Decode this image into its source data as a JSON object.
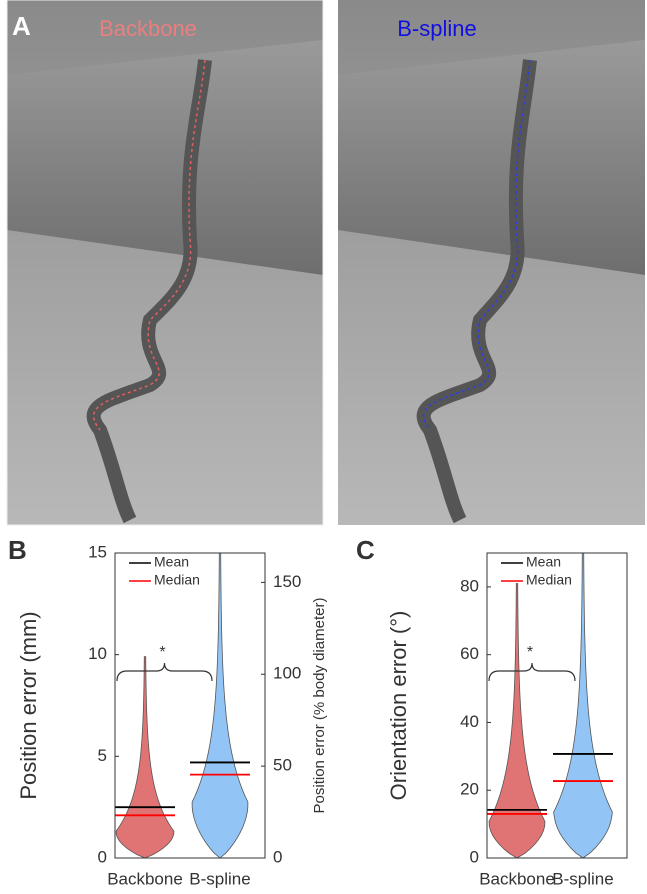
{
  "panel_labels": [
    "A",
    "B",
    "C"
  ],
  "photo_titles": [
    "Backbone",
    "B-spline"
  ],
  "chart_data": [
    {
      "type": "violin",
      "ylabel": "Position error (mm)",
      "y2label": "Position error (% body diameter)",
      "categories": [
        "Backbone",
        "B-spline"
      ],
      "violin_colors": [
        "#e07474",
        "#92c5f5"
      ],
      "series": [
        {
          "name": "Mean",
          "color": "#000000",
          "values": [
            2.5,
            4.7
          ]
        },
        {
          "name": "Median",
          "color": "#ff0000",
          "values": [
            2.1,
            4.1
          ]
        }
      ],
      "ylim": [
        0,
        15
      ],
      "yticks": [
        0,
        5,
        10,
        15
      ],
      "y2lim": [
        0,
        166
      ],
      "y2ticks": [
        0,
        50,
        100,
        150
      ],
      "annotation": "*"
    },
    {
      "type": "violin",
      "ylabel": "Orientation error (°)",
      "categories": [
        "Backbone",
        "B-spline"
      ],
      "violin_colors": [
        "#e07474",
        "#92c5f5"
      ],
      "series": [
        {
          "name": "Mean",
          "color": "#000000",
          "values": [
            14.2,
            30.7
          ]
        },
        {
          "name": "Median",
          "color": "#ff0000",
          "values": [
            13,
            22.7
          ]
        }
      ],
      "ylim": [
        0,
        90
      ],
      "yticks": [
        0,
        20,
        40,
        60,
        80
      ],
      "annotation": "*"
    }
  ]
}
